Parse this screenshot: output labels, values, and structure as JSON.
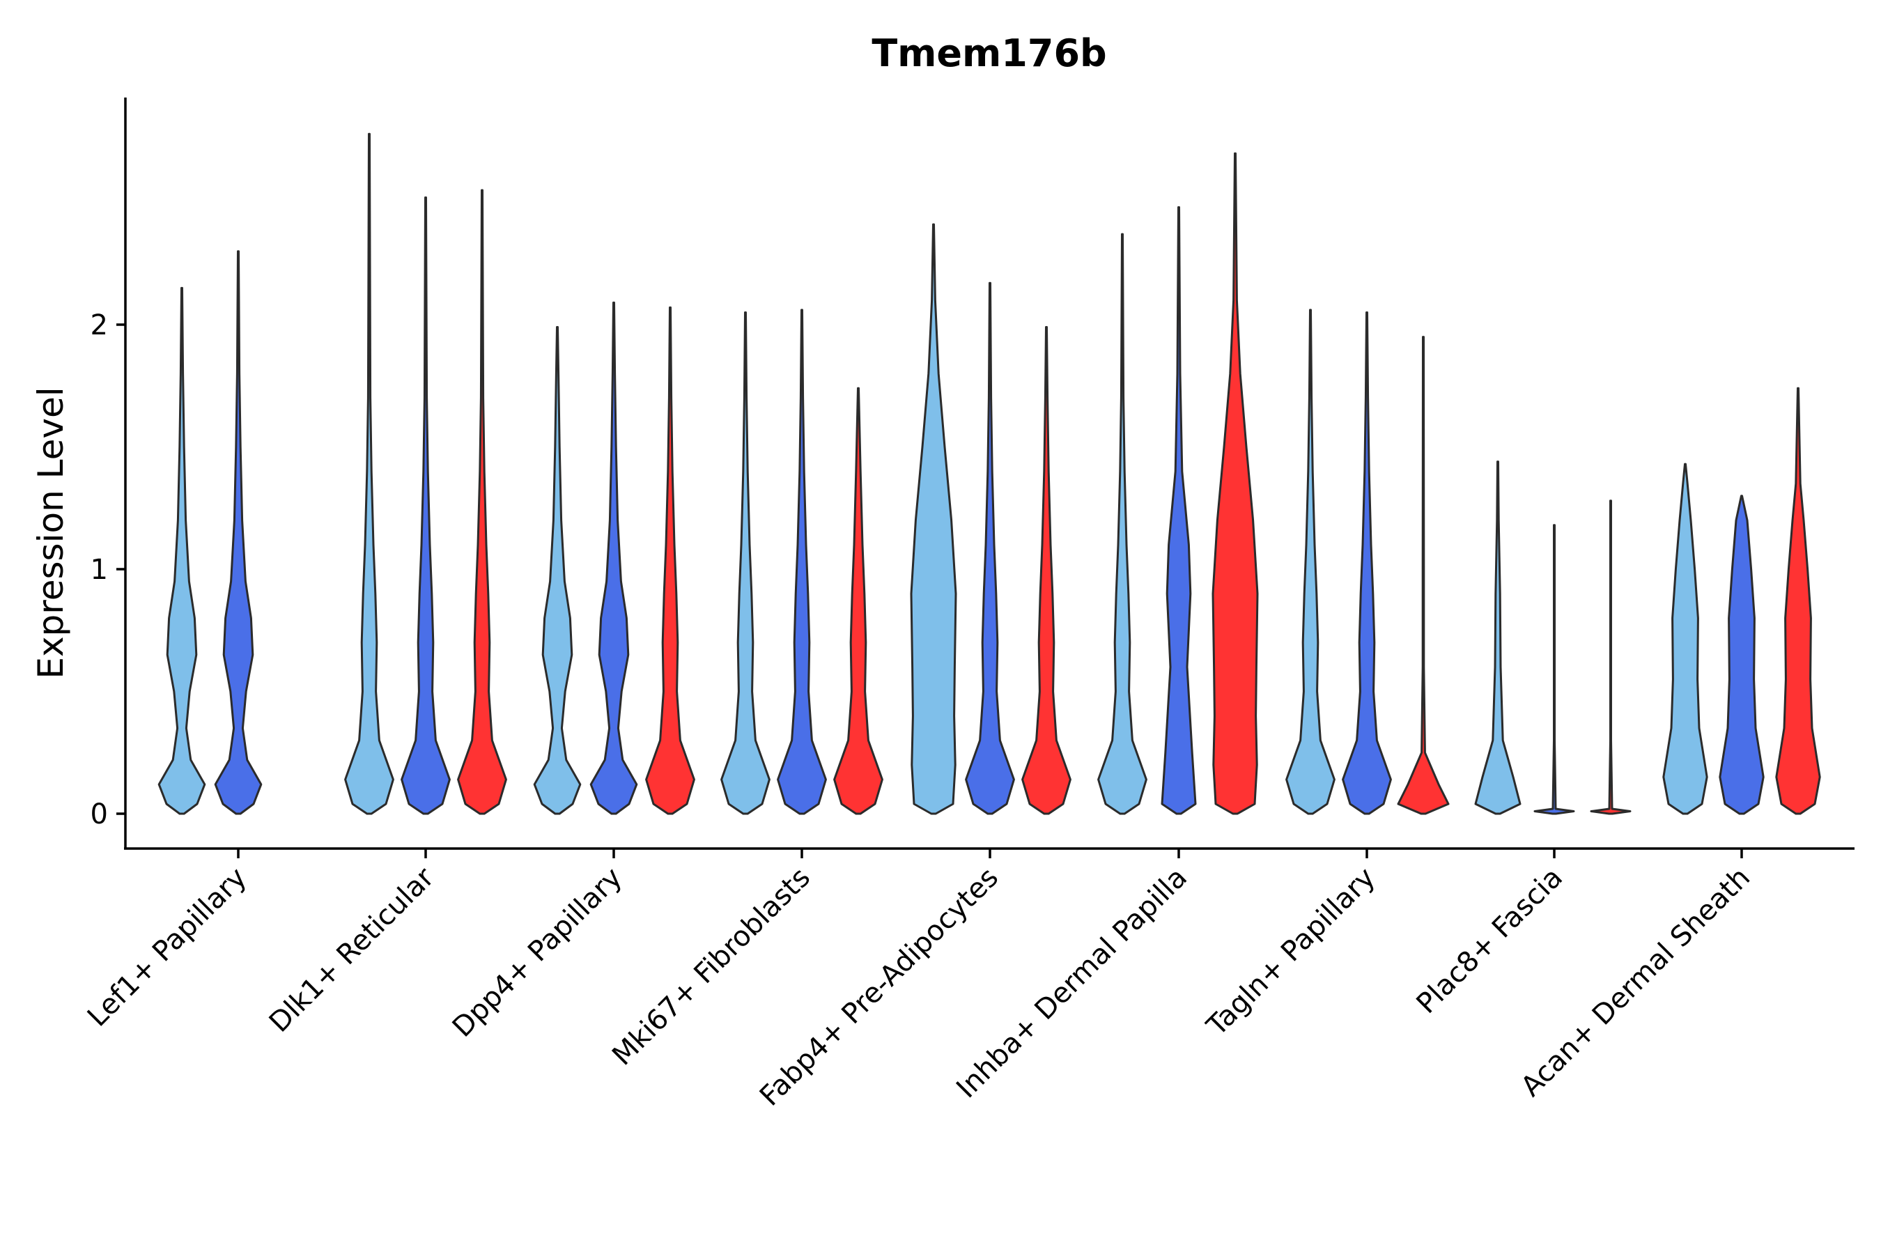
{
  "chart_data": {
    "type": "violin",
    "title": "Tmem176b",
    "ylabel": "Expression Level",
    "xlabel": "",
    "ylim": [
      -0.14,
      2.95
    ],
    "yticks": [
      0,
      1,
      2
    ],
    "categories": [
      "Lef1+ Papillary",
      "Dlk1+ Reticular",
      "Dpp4+ Papillary",
      "Mki67+ Fibroblasts",
      "Fabp4+ Pre-Adipocytes",
      "Inhba+ Dermal Papilla",
      "Tagln+ Papillary",
      "Plac8+ Fascia",
      "Acan+ Dermal Sheath"
    ],
    "series": [
      {
        "color": "#7fbfea",
        "max": [
          2.15,
          2.78,
          1.99,
          2.05,
          2.41,
          2.37,
          2.06,
          1.44,
          1.43
        ]
      },
      {
        "color": "#4a6fe8",
        "max": [
          2.3,
          2.52,
          2.09,
          2.06,
          2.17,
          2.48,
          2.05,
          1.18,
          1.3
        ]
      },
      {
        "color": "#ff3333",
        "max": [
          null,
          2.55,
          2.07,
          1.74,
          1.99,
          2.7,
          1.95,
          1.28,
          1.74
        ]
      }
    ],
    "grid": false,
    "legend": "none"
  }
}
